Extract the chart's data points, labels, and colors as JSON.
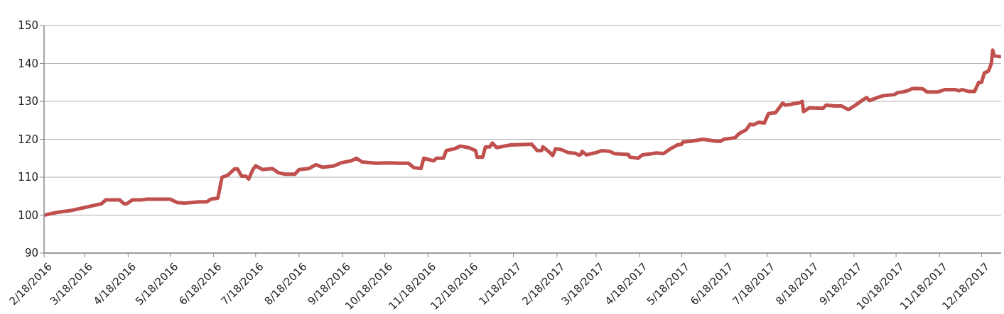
{
  "chart_data": {
    "type": "line",
    "x": [
      "2016-02-18",
      "2016-02-27",
      "2016-03-08",
      "2016-03-18",
      "2016-03-25",
      "2016-03-30",
      "2016-04-02",
      "2016-04-12",
      "2016-04-15",
      "2016-04-17",
      "2016-04-21",
      "2016-04-27",
      "2016-05-02",
      "2016-05-18",
      "2016-05-23",
      "2016-05-28",
      "2016-06-02",
      "2016-06-08",
      "2016-06-13",
      "2016-06-16",
      "2016-06-21",
      "2016-06-24",
      "2016-06-28",
      "2016-07-03",
      "2016-07-05",
      "2016-07-08",
      "2016-07-11",
      "2016-07-13",
      "2016-07-16",
      "2016-07-18",
      "2016-07-23",
      "2016-07-30",
      "2016-08-03",
      "2016-08-08",
      "2016-08-15",
      "2016-08-18",
      "2016-08-25",
      "2016-08-30",
      "2016-09-04",
      "2016-09-12",
      "2016-09-17",
      "2016-09-24",
      "2016-09-28",
      "2016-10-02",
      "2016-10-12",
      "2016-10-22",
      "2016-10-27",
      "2016-11-04",
      "2016-11-08",
      "2016-11-13",
      "2016-11-15",
      "2016-11-22",
      "2016-11-24",
      "2016-11-29",
      "2016-12-01",
      "2016-12-07",
      "2016-12-11",
      "2016-12-17",
      "2016-12-22",
      "2016-12-23",
      "2016-12-27",
      "2016-12-29",
      "2017-01-01",
      "2017-01-03",
      "2017-01-06",
      "2017-01-16",
      "2017-01-31",
      "2017-02-04",
      "2017-02-07",
      "2017-02-08",
      "2017-02-13",
      "2017-02-15",
      "2017-02-17",
      "2017-02-21",
      "2017-02-26",
      "2017-03-03",
      "2017-03-06",
      "2017-03-07",
      "2017-03-08",
      "2017-03-11",
      "2017-03-18",
      "2017-03-22",
      "2017-03-28",
      "2017-03-31",
      "2017-04-10",
      "2017-04-11",
      "2017-04-17",
      "2017-04-20",
      "2017-04-27",
      "2017-04-30",
      "2017-05-05",
      "2017-05-10",
      "2017-05-15",
      "2017-05-18",
      "2017-05-19",
      "2017-05-25",
      "2017-06-02",
      "2017-06-12",
      "2017-06-15",
      "2017-06-17",
      "2017-06-25",
      "2017-06-28",
      "2017-07-03",
      "2017-07-06",
      "2017-07-08",
      "2017-07-12",
      "2017-07-16",
      "2017-07-19",
      "2017-07-24",
      "2017-07-29",
      "2017-07-31",
      "2017-08-04",
      "2017-08-06",
      "2017-08-10",
      "2017-08-12",
      "2017-08-13",
      "2017-08-17",
      "2017-08-27",
      "2017-08-29",
      "2017-09-04",
      "2017-09-09",
      "2017-09-14",
      "2017-09-19",
      "2017-09-24",
      "2017-09-27",
      "2017-09-29",
      "2017-10-04",
      "2017-10-09",
      "2017-10-17",
      "2017-10-19",
      "2017-10-23",
      "2017-10-27",
      "2017-10-29",
      "2017-11-01",
      "2017-11-06",
      "2017-11-09",
      "2017-11-17",
      "2017-11-22",
      "2017-11-29",
      "2017-12-02",
      "2017-12-04",
      "2017-12-09",
      "2017-12-13",
      "2017-12-16",
      "2017-12-18",
      "2017-12-20",
      "2017-12-23",
      "2017-12-25",
      "2017-12-26",
      "2017-12-27",
      "2017-12-31"
    ],
    "series": [
      {
        "color": "#c0504d",
        "values": [
          100,
          100.7,
          101.2,
          102,
          102.6,
          103,
          104,
          104,
          103,
          103,
          104,
          104,
          104.2,
          104.2,
          103.3,
          103.2,
          103.3,
          103.5,
          103.5,
          104.2,
          104.5,
          110,
          110.5,
          112.2,
          112.2,
          110.3,
          110.3,
          109.5,
          112,
          113,
          112,
          112.3,
          111.2,
          110.8,
          110.8,
          112,
          112.3,
          113.3,
          112.6,
          113,
          113.8,
          114.3,
          115,
          114,
          113.7,
          113.8,
          113.7,
          113.7,
          112.5,
          112.3,
          115,
          114.3,
          115,
          115,
          117,
          117.5,
          118.2,
          117.8,
          117,
          115.3,
          115.3,
          118,
          118,
          119,
          117.8,
          118.5,
          118.7,
          117,
          117,
          118,
          116.5,
          115.7,
          117.5,
          117.3,
          116.5,
          116.3,
          115.8,
          116,
          116.8,
          115.9,
          116.5,
          117,
          116.8,
          116.2,
          116,
          115.3,
          115,
          115.9,
          116.2,
          116.4,
          116.2,
          117.5,
          118.5,
          118.7,
          119.3,
          119.5,
          120,
          119.5,
          119.5,
          120,
          120.4,
          121.5,
          122.5,
          124,
          123.8,
          124.5,
          124.3,
          126.8,
          127,
          129.5,
          129,
          129.2,
          129.4,
          129.6,
          130,
          127.3,
          128.3,
          128.2,
          129,
          128.8,
          128.8,
          127.8,
          129,
          130.3,
          131,
          130.2,
          130.9,
          131.5,
          131.8,
          132.3,
          132.5,
          132.9,
          133.3,
          133.4,
          133.3,
          132.5,
          132.5,
          133.1,
          133.1,
          132.8,
          133.1,
          132.6,
          132.6,
          135,
          135,
          137.5,
          138,
          140,
          143.5,
          142,
          141.8
        ]
      }
    ],
    "xlim": [
      "2016-02-18",
      "2018-01-01"
    ],
    "xticks": [
      {
        "value": "2016-02-18",
        "label": "2/18/2016"
      },
      {
        "value": "2016-03-18",
        "label": "3/18/2016"
      },
      {
        "value": "2016-04-18",
        "label": "4/18/2016"
      },
      {
        "value": "2016-05-18",
        "label": "5/18/2016"
      },
      {
        "value": "2016-06-18",
        "label": "6/18/2016"
      },
      {
        "value": "2016-07-18",
        "label": "7/18/2016"
      },
      {
        "value": "2016-08-18",
        "label": "8/18/2016"
      },
      {
        "value": "2016-09-18",
        "label": "9/18/2016"
      },
      {
        "value": "2016-10-18",
        "label": "10/18/2016"
      },
      {
        "value": "2016-11-18",
        "label": "11/18/2016"
      },
      {
        "value": "2016-12-18",
        "label": "12/18/2016"
      },
      {
        "value": "2017-01-18",
        "label": "1/18/2017"
      },
      {
        "value": "2017-02-18",
        "label": "2/18/2017"
      },
      {
        "value": "2017-03-18",
        "label": "3/18/2017"
      },
      {
        "value": "2017-04-18",
        "label": "4/18/2017"
      },
      {
        "value": "2017-05-18",
        "label": "5/18/2017"
      },
      {
        "value": "2017-06-18",
        "label": "6/18/2017"
      },
      {
        "value": "2017-07-18",
        "label": "7/18/2017"
      },
      {
        "value": "2017-08-18",
        "label": "8/18/2017"
      },
      {
        "value": "2017-09-18",
        "label": "9/18/2017"
      },
      {
        "value": "2017-10-18",
        "label": "10/18/2017"
      },
      {
        "value": "2017-11-18",
        "label": "11/18/2017"
      },
      {
        "value": "2017-12-18",
        "label": "12/18/2017"
      }
    ],
    "ylim": [
      90,
      150
    ],
    "yticks": [
      90,
      100,
      110,
      120,
      130,
      140,
      150
    ],
    "grid": "y",
    "marker": "none",
    "line_style": "solid"
  }
}
